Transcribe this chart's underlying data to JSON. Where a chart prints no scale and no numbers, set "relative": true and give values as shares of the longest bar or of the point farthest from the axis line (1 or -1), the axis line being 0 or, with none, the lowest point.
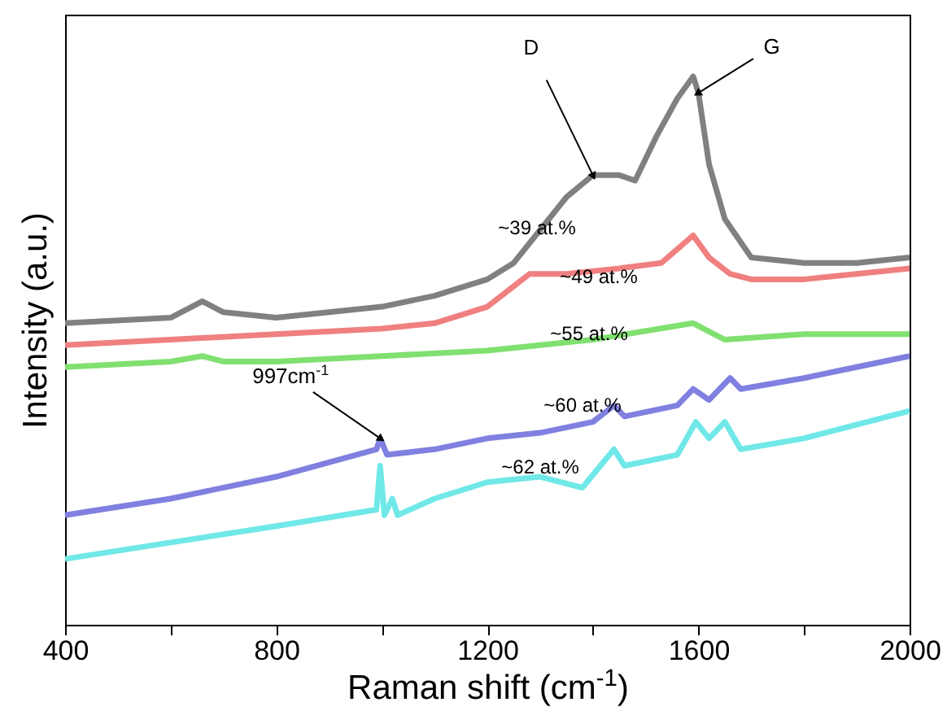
{
  "chart_data": {
    "type": "line",
    "relative": true,
    "xlabel": "Raman shift (cm$^{-1}$)",
    "ylabel": "Intensity (a.u.)",
    "xlim": [
      400,
      2000
    ],
    "xticks": [
      400,
      {
        "value": 600,
        "label": null
      },
      800,
      {
        "value": 1000,
        "label": null
      },
      1200,
      {
        "value": 1400,
        "label": null
      },
      1600,
      {
        "value": 1800,
        "label": null
      },
      2000
    ],
    "series": [
      {
        "name": "~39 at.%",
        "color": "#808080",
        "x": [
          400,
          600,
          660,
          700,
          800,
          900,
          1000,
          1100,
          1200,
          1250,
          1300,
          1350,
          1400,
          1450,
          1480,
          1520,
          1560,
          1590,
          1600,
          1620,
          1650,
          1700,
          1800,
          1900,
          2000
        ],
        "values": [
          0.55,
          0.56,
          0.59,
          0.57,
          0.56,
          0.57,
          0.58,
          0.6,
          0.63,
          0.66,
          0.72,
          0.78,
          0.82,
          0.82,
          0.81,
          0.89,
          0.96,
          1,
          0.97,
          0.84,
          0.74,
          0.67,
          0.66,
          0.66,
          0.67
        ]
      },
      {
        "name": "~49 at.%",
        "color": "#f08080",
        "x": [
          400,
          600,
          800,
          1000,
          1100,
          1200,
          1280,
          1350,
          1450,
          1530,
          1590,
          1620,
          1660,
          1700,
          1800,
          2000
        ],
        "values": [
          0.51,
          0.52,
          0.53,
          0.54,
          0.55,
          0.58,
          0.64,
          0.64,
          0.65,
          0.66,
          0.71,
          0.67,
          0.64,
          0.63,
          0.63,
          0.65
        ]
      },
      {
        "name": "~55 at.%",
        "color": "#80e070",
        "x": [
          400,
          600,
          660,
          700,
          800,
          1000,
          1200,
          1400,
          1590,
          1650,
          1800,
          2000
        ],
        "values": [
          0.47,
          0.48,
          0.49,
          0.48,
          0.48,
          0.49,
          0.5,
          0.52,
          0.55,
          0.52,
          0.53,
          0.53
        ]
      },
      {
        "name": "~60 at.%",
        "color": "#8080e0",
        "x": [
          400,
          600,
          800,
          990,
          997,
          1010,
          1100,
          1200,
          1300,
          1400,
          1440,
          1460,
          1560,
          1590,
          1620,
          1660,
          1680,
          1800,
          2000
        ],
        "values": [
          0.2,
          0.23,
          0.27,
          0.32,
          0.34,
          0.31,
          0.32,
          0.34,
          0.35,
          0.37,
          0.4,
          0.38,
          0.4,
          0.43,
          0.41,
          0.45,
          0.43,
          0.45,
          0.49
        ]
      },
      {
        "name": "~62 at.%",
        "color": "#70e8e8",
        "x": [
          400,
          600,
          800,
          990,
          997,
          1005,
          1020,
          1030,
          1100,
          1200,
          1300,
          1380,
          1440,
          1460,
          1560,
          1595,
          1620,
          1650,
          1680,
          1800,
          2000
        ],
        "values": [
          0.12,
          0.15,
          0.18,
          0.21,
          0.29,
          0.2,
          0.23,
          0.2,
          0.23,
          0.26,
          0.27,
          0.25,
          0.32,
          0.29,
          0.31,
          0.37,
          0.34,
          0.37,
          0.32,
          0.34,
          0.39
        ]
      }
    ],
    "annotations": [
      {
        "text": "D",
        "x": 1400,
        "y": 0.82
      },
      {
        "text": "G",
        "x": 1600,
        "y": 0.97
      },
      {
        "text": "997cm$^{-1}$",
        "x": 997,
        "y": 0.34
      }
    ]
  }
}
